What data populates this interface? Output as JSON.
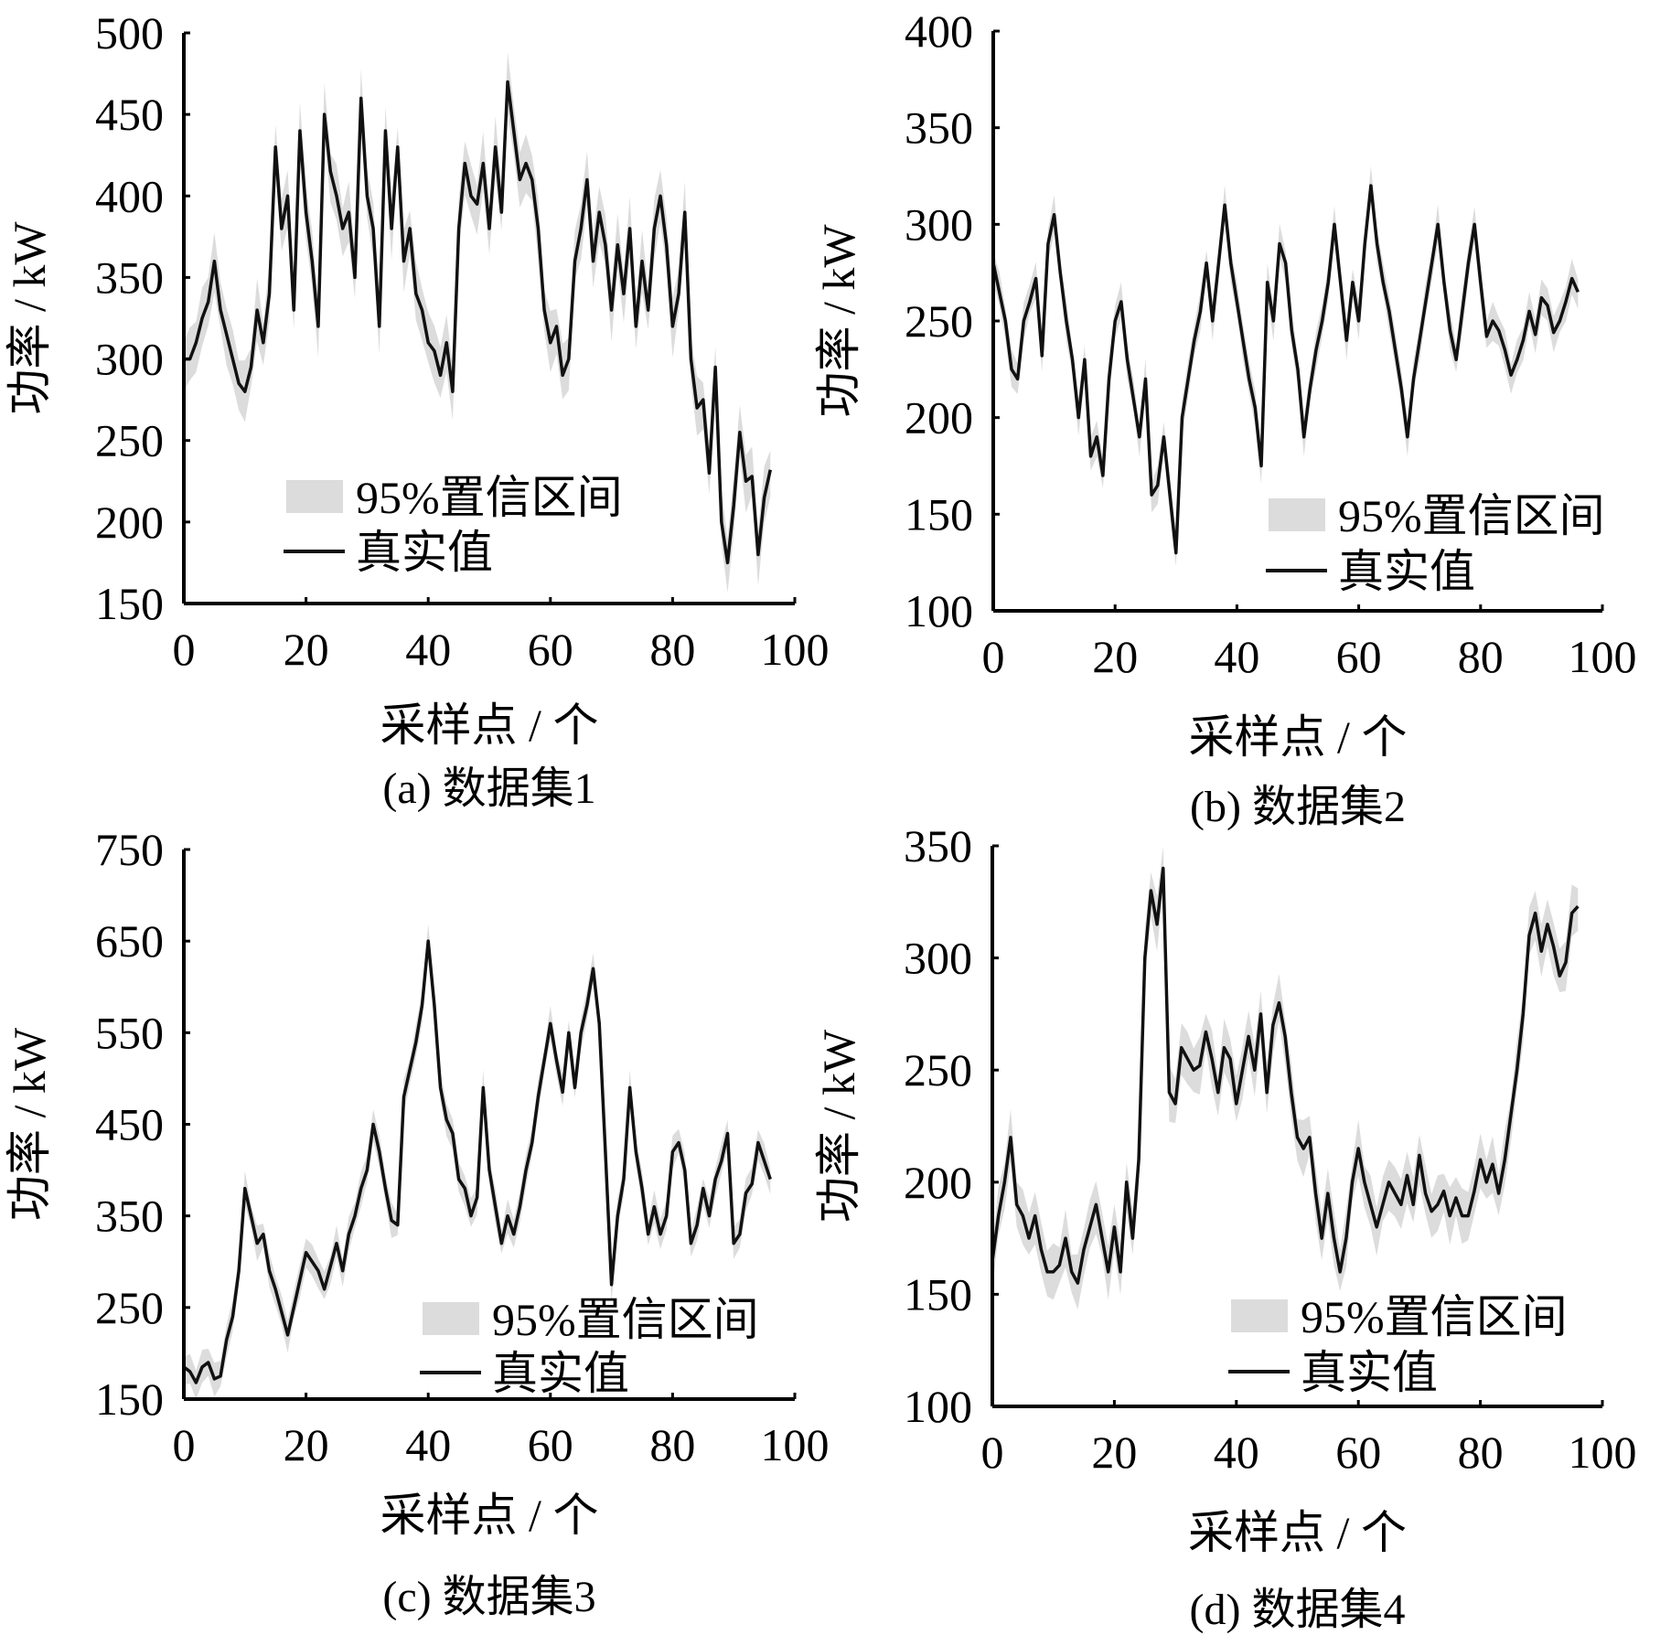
{
  "colors": {
    "band": "#dcdcdc",
    "line": "#111111",
    "axis": "#000000"
  },
  "chart_data": [
    {
      "type": "line",
      "caption": "(a)  数据集1",
      "xlabel": "采样点 / 个",
      "ylabel": "功率 / kW",
      "xlim": [
        0,
        100
      ],
      "ylim": [
        150,
        500
      ],
      "xticks": [
        0,
        20,
        40,
        60,
        80,
        100
      ],
      "yticks": [
        150,
        200,
        250,
        300,
        350,
        400,
        450,
        500
      ],
      "legend": {
        "band_label": "95%置信区间",
        "line_label": "真实值",
        "placement": "lower-center"
      },
      "ci_halfwidth": 15,
      "series": [
        {
          "name": "真实值",
          "values": [
            300,
            300,
            310,
            325,
            335,
            360,
            330,
            315,
            300,
            285,
            280,
            295,
            330,
            310,
            340,
            430,
            380,
            400,
            330,
            440,
            390,
            360,
            320,
            450,
            415,
            400,
            380,
            390,
            350,
            460,
            400,
            380,
            320,
            440,
            380,
            430,
            360,
            380,
            340,
            330,
            310,
            305,
            290,
            310,
            280,
            380,
            420,
            400,
            395,
            420,
            380,
            430,
            390,
            470,
            440,
            410,
            420,
            410,
            380,
            330,
            310,
            320,
            290,
            300,
            360,
            380,
            410,
            360,
            390,
            370,
            330,
            370,
            340,
            380,
            320,
            360,
            330,
            380,
            400,
            370,
            320,
            340,
            390,
            300,
            270,
            275,
            230,
            295,
            200,
            175,
            210,
            255,
            225,
            228,
            180,
            215,
            232
          ]
        }
      ]
    },
    {
      "type": "line",
      "caption": "(b)  数据集2",
      "xlabel": "采样点 / 个",
      "ylabel": "功率 / kW",
      "xlim": [
        0,
        100
      ],
      "ylim": [
        100,
        400
      ],
      "xticks": [
        0,
        20,
        40,
        60,
        80,
        100
      ],
      "yticks": [
        100,
        150,
        200,
        250,
        300,
        350,
        400
      ],
      "legend": {
        "band_label": "95%置信区间",
        "line_label": "真实值",
        "placement": "lower-right"
      },
      "ci_halfwidth": 8,
      "series": [
        {
          "name": "真实值",
          "values": [
            280,
            265,
            250,
            225,
            220,
            250,
            260,
            272,
            232,
            290,
            305,
            275,
            250,
            230,
            200,
            230,
            180,
            190,
            170,
            220,
            250,
            260,
            230,
            210,
            190,
            220,
            160,
            165,
            190,
            160,
            130,
            200,
            220,
            240,
            255,
            280,
            250,
            280,
            310,
            280,
            260,
            240,
            220,
            205,
            175,
            270,
            250,
            290,
            280,
            245,
            225,
            190,
            215,
            235,
            250,
            270,
            300,
            270,
            240,
            270,
            250,
            290,
            320,
            290,
            270,
            255,
            235,
            215,
            190,
            220,
            240,
            260,
            280,
            300,
            270,
            245,
            230,
            255,
            280,
            300,
            270,
            242,
            250,
            245,
            235,
            222,
            230,
            240,
            255,
            243,
            262,
            258,
            244,
            250,
            260,
            272,
            265
          ]
        }
      ]
    },
    {
      "type": "line",
      "caption": "(c)  数据集3",
      "xlabel": "采样点 / 个",
      "ylabel": "功率 / kW",
      "xlim": [
        0,
        100
      ],
      "ylim": [
        150,
        750
      ],
      "xticks": [
        0,
        20,
        40,
        60,
        80,
        100
      ],
      "yticks": [
        150,
        250,
        350,
        450,
        550,
        650,
        750
      ],
      "legend": {
        "band_label": "95%置信区间",
        "line_label": "真实值",
        "placement": "lower-center"
      },
      "ci_halfwidth": 15,
      "series": [
        {
          "name": "真实值",
          "values": [
            185,
            180,
            168,
            185,
            190,
            172,
            175,
            215,
            240,
            290,
            380,
            350,
            320,
            330,
            290,
            270,
            245,
            220,
            250,
            280,
            310,
            300,
            290,
            270,
            295,
            320,
            290,
            330,
            350,
            380,
            400,
            450,
            420,
            380,
            345,
            340,
            480,
            510,
            540,
            580,
            650,
            580,
            490,
            455,
            440,
            390,
            380,
            350,
            370,
            490,
            400,
            360,
            320,
            350,
            330,
            360,
            400,
            430,
            480,
            520,
            560,
            520,
            485,
            550,
            490,
            550,
            580,
            620,
            560,
            420,
            275,
            350,
            390,
            490,
            420,
            380,
            330,
            360,
            330,
            350,
            420,
            430,
            400,
            320,
            340,
            380,
            350,
            390,
            410,
            440,
            320,
            330,
            375,
            385,
            430,
            410,
            390
          ]
        }
      ]
    },
    {
      "type": "line",
      "caption": "(d)  数据集4",
      "xlabel": "采样点 / 个",
      "ylabel": "功率 / kW",
      "xlim": [
        0,
        100
      ],
      "ylim": [
        100,
        350
      ],
      "xticks": [
        0,
        20,
        40,
        60,
        80,
        100
      ],
      "yticks": [
        100,
        150,
        200,
        250,
        300,
        350
      ],
      "legend": {
        "band_label": "95%置信区间",
        "line_label": "真实值",
        "placement": "lower-right"
      },
      "ci_halfwidth": 10,
      "series": [
        {
          "name": "真实值",
          "values": [
            165,
            185,
            200,
            220,
            190,
            185,
            175,
            185,
            170,
            160,
            160,
            163,
            175,
            160,
            155,
            170,
            180,
            190,
            175,
            160,
            180,
            160,
            200,
            175,
            210,
            300,
            330,
            315,
            340,
            240,
            235,
            260,
            255,
            250,
            252,
            267,
            255,
            240,
            260,
            255,
            235,
            250,
            265,
            250,
            275,
            240,
            270,
            280,
            265,
            240,
            220,
            215,
            220,
            195,
            175,
            195,
            175,
            160,
            175,
            200,
            215,
            200,
            190,
            180,
            190,
            200,
            195,
            190,
            203,
            190,
            212,
            195,
            187,
            190,
            196,
            185,
            193,
            185,
            185,
            196,
            210,
            200,
            208,
            195,
            210,
            230,
            250,
            275,
            310,
            320,
            303,
            315,
            305,
            292,
            298,
            320,
            323
          ]
        }
      ]
    }
  ]
}
